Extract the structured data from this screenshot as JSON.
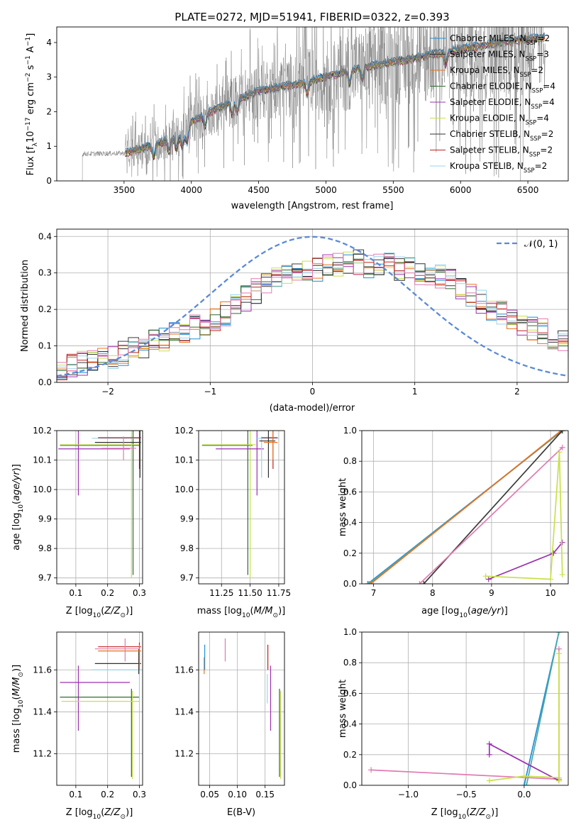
{
  "title": "PLATE=0272, MJD=51941, FIBERID=0322, z=0.393",
  "colors": {
    "Chabrier MILES": "#1f8fd6",
    "Salpeter MILES": "#3a3a3a",
    "Kroupa MILES": "#e8731e",
    "Chabrier ELODIE": "#2d6b2d",
    "Salpeter ELODIE": "#9b30b0",
    "Kroupa ELODIE": "#c8e04a",
    "Chabrier STELIB": "#303030",
    "Salpeter STELIB": "#c0201e",
    "Kroupa STELIB": "#9ad4ea",
    "data": "#808080",
    "normal": "#5b8ad6",
    "pink": "#e07ab0",
    "teal": "#4aa8a8"
  },
  "chart_data": [
    {
      "type": "line",
      "panel": "spectrum",
      "xlabel": "wavelength [Angstrom, rest frame]",
      "ylabel_main": "Flux [f",
      "ylabel_sub": "λ",
      "ylabel_rest": "10",
      "ylabel_exp": "−17",
      "ylabel_tail": " erg cm",
      "ylabel_exp2": "−2",
      "ylabel_tail2": " s",
      "ylabel_exp3": "−1",
      "ylabel_tail3": " A",
      "ylabel_exp4": "−1",
      "ylabel_end": "]",
      "xlim": [
        3000,
        6800
      ],
      "ylim": [
        0,
        4.45
      ],
      "xticks": [
        3500,
        4000,
        4500,
        5000,
        5500,
        6000,
        6500
      ],
      "yticks": [
        0,
        1,
        2,
        3,
        4
      ],
      "data_start": 3190,
      "data_end": 6630,
      "model_start": 3510,
      "continuum": [
        [
          3190,
          0.78
        ],
        [
          3500,
          0.8
        ],
        [
          3700,
          1.0
        ],
        [
          3950,
          1.35
        ],
        [
          4000,
          1.7
        ],
        [
          4200,
          2.1
        ],
        [
          4500,
          2.6
        ],
        [
          4800,
          2.8
        ],
        [
          5000,
          3.0
        ],
        [
          5300,
          3.3
        ],
        [
          5600,
          3.5
        ],
        [
          6000,
          3.8
        ],
        [
          6300,
          4.0
        ],
        [
          6630,
          4.15
        ]
      ],
      "legend": [
        {
          "name": "Chabrier MILES",
          "n": "2"
        },
        {
          "name": "Salpeter MILES",
          "n": "3"
        },
        {
          "name": "Kroupa MILES",
          "n": "2"
        },
        {
          "name": "Chabrier ELODIE",
          "n": "4"
        },
        {
          "name": "Salpeter ELODIE",
          "n": "4"
        },
        {
          "name": "Kroupa ELODIE",
          "n": "4"
        },
        {
          "name": "Chabrier STELIB",
          "n": "2"
        },
        {
          "name": "Salpeter STELIB",
          "n": "2"
        },
        {
          "name": "Kroupa STELIB",
          "n": "2"
        }
      ],
      "legend_prefix": ", N",
      "legend_sub": "SSP",
      "legend_eq": "=",
      "legend_placement": "upper-right"
    },
    {
      "type": "histogram",
      "panel": "residuals",
      "xlabel": "(data-model)/error",
      "ylabel": "Normed distribution",
      "xlim": [
        -2.5,
        2.5
      ],
      "ylim": [
        0,
        0.42
      ],
      "xticks": [
        -2,
        -1,
        0,
        1,
        2
      ],
      "yticks": [
        0.0,
        0.1,
        0.2,
        0.3,
        0.4
      ],
      "bin_edges_start": -2.5,
      "bin_width": 0.1,
      "gaussian_label": "𝒩(0, 1)",
      "legend_placement": "upper-right",
      "grid": true,
      "base_values": [
        0.04,
        0.045,
        0.05,
        0.055,
        0.06,
        0.07,
        0.08,
        0.09,
        0.1,
        0.11,
        0.12,
        0.13,
        0.14,
        0.15,
        0.16,
        0.17,
        0.19,
        0.21,
        0.23,
        0.25,
        0.27,
        0.28,
        0.29,
        0.3,
        0.31,
        0.31,
        0.32,
        0.32,
        0.33,
        0.33,
        0.32,
        0.32,
        0.32,
        0.31,
        0.31,
        0.3,
        0.3,
        0.29,
        0.28,
        0.26,
        0.24,
        0.22,
        0.2,
        0.19,
        0.18,
        0.16,
        0.15,
        0.14,
        0.12,
        0.11,
        0.1
      ]
    },
    {
      "type": "errorbar",
      "panel": "age-vs-Z",
      "xlabel_main": "Z [log",
      "xlabel_sub": "10",
      "xlabel_rest": "(Z/Z",
      "xlabel_sub2": "⊙",
      "xlabel_end": ")]",
      "ylabel_main": "age  [log",
      "ylabel_sub": "10",
      "ylabel_end": "(age/yr)]",
      "xlim": [
        0.04,
        0.31
      ],
      "ylim": [
        9.68,
        10.2
      ],
      "xticks": [
        0.1,
        0.2,
        0.3
      ],
      "yticks": [
        9.7,
        9.8,
        9.9,
        10.0,
        10.1,
        10.2
      ],
      "points": [
        {
          "model": "Salpeter ELODIE",
          "x": 0.108,
          "y": 10.138,
          "xlo": 0.045,
          "xhi": 0.27,
          "ylo": 9.98,
          "yhi": 10.2
        },
        {
          "model": "Chabrier ELODIE",
          "x": 0.28,
          "y": 10.15,
          "xlo": 0.05,
          "xhi": 0.3,
          "ylo": 9.71,
          "yhi": 10.2
        },
        {
          "model": "Kroupa ELODIE",
          "x": 0.275,
          "y": 10.152,
          "xlo": 0.05,
          "xhi": 0.3,
          "ylo": 9.7,
          "yhi": 10.2
        },
        {
          "model": "Kroupa STELIB",
          "x": 0.2,
          "y": 10.174,
          "xlo": 0.15,
          "xhi": 0.3,
          "ylo": 10.17,
          "yhi": 10.18
        },
        {
          "model": "Salpeter STELIB",
          "x": 0.3,
          "y": 10.176,
          "xlo": 0.17,
          "xhi": 0.305,
          "ylo": 10.07,
          "yhi": 10.2
        },
        {
          "model": "Chabrier STELIB",
          "x": 0.302,
          "y": 10.16,
          "xlo": 0.16,
          "xhi": 0.305,
          "ylo": 10.04,
          "yhi": 10.2
        },
        {
          "model": "pink",
          "x": 0.25,
          "y": 10.14,
          "xlo": 0.18,
          "xhi": 0.29,
          "ylo": 10.1,
          "yhi": 10.18
        }
      ]
    },
    {
      "type": "errorbar",
      "panel": "age-vs-mass",
      "xlabel_main": "mass [log",
      "xlabel_sub": "10",
      "xlabel_rest": "(M/M",
      "xlabel_sub2": "⊙",
      "xlabel_end": ")]",
      "xlim": [
        11.05,
        11.8
      ],
      "ylim": [
        9.68,
        10.2
      ],
      "xticks": [
        11.25,
        11.5,
        11.75
      ],
      "xtick_labels": [
        "11.25",
        "11.50",
        "11.75"
      ],
      "yticks": [
        9.7,
        9.8,
        9.9,
        10.0,
        10.1,
        10.2
      ],
      "points": [
        {
          "model": "Chabrier ELODIE",
          "x": 11.48,
          "y": 10.15,
          "xlo": 11.08,
          "xhi": 11.52,
          "ylo": 9.71,
          "yhi": 10.2
        },
        {
          "model": "Kroupa ELODIE",
          "x": 11.5,
          "y": 10.152,
          "xlo": 11.08,
          "xhi": 11.55,
          "ylo": 9.7,
          "yhi": 10.2
        },
        {
          "model": "Salpeter ELODIE",
          "x": 11.56,
          "y": 10.138,
          "xlo": 11.2,
          "xhi": 11.62,
          "ylo": 9.98,
          "yhi": 10.2
        },
        {
          "model": "Kroupa STELIB",
          "x": 11.6,
          "y": 10.174,
          "xlo": 11.55,
          "xhi": 11.75,
          "ylo": 10.04,
          "yhi": 10.18
        },
        {
          "model": "Salpeter STELIB",
          "x": 11.7,
          "y": 10.176,
          "xlo": 11.6,
          "xhi": 11.74,
          "ylo": 10.07,
          "yhi": 10.2
        },
        {
          "model": "Chabrier STELIB",
          "x": 11.66,
          "y": 10.165,
          "xlo": 11.58,
          "xhi": 11.72,
          "ylo": 10.04,
          "yhi": 10.2
        },
        {
          "model": "Kroupa MILES",
          "x": 11.7,
          "y": 10.16,
          "xlo": 11.62,
          "xhi": 11.74,
          "ylo": 10.1,
          "yhi": 10.2
        }
      ]
    },
    {
      "type": "line",
      "panel": "weight-vs-age",
      "xlabel_main": "age  [log",
      "xlabel_sub": "10",
      "xlabel_end": "(age/yr)]",
      "ylabel": "mass weight",
      "xlim": [
        6.8,
        10.3
      ],
      "ylim": [
        0,
        1
      ],
      "xticks": [
        7,
        8,
        9,
        10
      ],
      "yticks": [
        0.0,
        0.2,
        0.4,
        0.6,
        0.8,
        1.0
      ],
      "grid": true,
      "series": [
        {
          "model": "Chabrier MILES",
          "x": [
            6.9,
            10.2
          ],
          "y": [
            0.0,
            1.0
          ]
        },
        {
          "model": "teal",
          "x": [
            6.92,
            10.2
          ],
          "y": [
            0.0,
            1.0
          ]
        },
        {
          "model": "Kroupa MILES",
          "x": [
            6.95,
            10.18
          ],
          "y": [
            0.0,
            1.0
          ]
        },
        {
          "model": "Salpeter MILES",
          "x": [
            7.85,
            10.2
          ],
          "y": [
            0.0,
            1.0
          ]
        },
        {
          "model": "pink",
          "x": [
            7.78,
            10.2
          ],
          "y": [
            0.0,
            0.89
          ]
        },
        {
          "model": "Salpeter ELODIE",
          "x": [
            8.95,
            10.05,
            10.2
          ],
          "y": [
            0.03,
            0.2,
            0.27
          ]
        },
        {
          "model": "Kroupa ELODIE",
          "x": [
            8.9,
            10.0,
            10.15,
            10.2
          ],
          "y": [
            0.05,
            0.03,
            0.86,
            0.06
          ]
        }
      ]
    },
    {
      "type": "errorbar",
      "panel": "mass-vs-Z",
      "xlabel_main": "Z [log",
      "xlabel_sub": "10",
      "xlabel_rest": "(Z/Z",
      "xlabel_sub2": "⊙",
      "xlabel_end": ")]",
      "ylabel_main": "mass [log",
      "ylabel_sub": "10",
      "ylabel_rest": "(M/M",
      "ylabel_sub2": "⊙",
      "ylabel_end": ")]",
      "xlim": [
        0.04,
        0.31
      ],
      "ylim": [
        11.05,
        11.78
      ],
      "xticks": [
        0.1,
        0.2,
        0.3
      ],
      "yticks": [
        11.2,
        11.4,
        11.6
      ],
      "points": [
        {
          "model": "Salpeter ELODIE",
          "x": 0.108,
          "y": 11.54,
          "xlo": 0.05,
          "xhi": 0.27,
          "ylo": 11.31,
          "yhi": 11.62
        },
        {
          "model": "Chabrier ELODIE",
          "x": 0.275,
          "y": 11.47,
          "xlo": 0.05,
          "xhi": 0.3,
          "ylo": 11.09,
          "yhi": 11.51
        },
        {
          "model": "Kroupa ELODIE",
          "x": 0.278,
          "y": 11.45,
          "xlo": 0.055,
          "xhi": 0.3,
          "ylo": 11.08,
          "yhi": 11.5
        },
        {
          "model": "Kroupa STELIB",
          "x": 0.3,
          "y": 11.6,
          "xlo": 0.15,
          "xhi": 0.305,
          "ylo": 11.45,
          "yhi": 11.72
        },
        {
          "model": "Salpeter STELIB",
          "x": 0.3,
          "y": 11.71,
          "xlo": 0.17,
          "xhi": 0.305,
          "ylo": 11.62,
          "yhi": 11.73
        },
        {
          "model": "Chabrier STELIB",
          "x": 0.298,
          "y": 11.63,
          "xlo": 0.16,
          "xhi": 0.305,
          "ylo": 11.58,
          "yhi": 11.7
        },
        {
          "model": "Kroupa MILES",
          "x": 0.3,
          "y": 11.69,
          "xlo": 0.17,
          "xhi": 0.305,
          "ylo": 11.6,
          "yhi": 11.72
        },
        {
          "model": "pink",
          "x": 0.255,
          "y": 11.7,
          "xlo": 0.16,
          "xhi": 0.3,
          "ylo": 11.64,
          "yhi": 11.75
        }
      ]
    },
    {
      "type": "errorbar",
      "panel": "mass-vs-EBV",
      "xlabel": "E(B-V)",
      "xlim": [
        0.03,
        0.185
      ],
      "ylim": [
        11.05,
        11.78
      ],
      "xticks": [
        0.05,
        0.1,
        0.15
      ],
      "xtick_labels": [
        "0.05",
        "0.10",
        "0.15"
      ],
      "yticks": [
        11.2,
        11.4,
        11.6
      ],
      "points": [
        {
          "model": "Kroupa MILES",
          "x": 0.04,
          "y": 11.6,
          "ylo": 11.58,
          "yhi": 11.66
        },
        {
          "model": "Chabrier MILES",
          "x": 0.041,
          "y": 11.66,
          "ylo": 11.6,
          "yhi": 11.72
        },
        {
          "model": "pink",
          "x": 0.078,
          "y": 11.7,
          "ylo": 11.64,
          "yhi": 11.75
        },
        {
          "model": "Kroupa STELIB",
          "x": 0.154,
          "y": 11.5,
          "ylo": 11.44,
          "yhi": 11.58
        },
        {
          "model": "Salpeter STELIB",
          "x": 0.155,
          "y": 11.66,
          "ylo": 11.6,
          "yhi": 11.72
        },
        {
          "model": "Salpeter ELODIE",
          "x": 0.16,
          "y": 11.45,
          "ylo": 11.31,
          "yhi": 11.62
        },
        {
          "model": "Chabrier ELODIE",
          "x": 0.176,
          "y": 11.47,
          "ylo": 11.09,
          "yhi": 11.51
        },
        {
          "model": "Kroupa ELODIE",
          "x": 0.178,
          "y": 11.45,
          "ylo": 11.08,
          "yhi": 11.5
        }
      ]
    },
    {
      "type": "line",
      "panel": "weight-vs-Z",
      "xlabel_main": "Z [log",
      "xlabel_sub": "10",
      "xlabel_rest": "(Z/Z",
      "xlabel_sub2": "⊙",
      "xlabel_end": ")]",
      "ylabel": "mass weight",
      "xlim": [
        -1.4,
        0.38
      ],
      "ylim": [
        0,
        1
      ],
      "xticks": [
        -1.0,
        -0.5,
        0.0
      ],
      "xtick_labels": [
        "−1.0",
        "−0.5",
        "0.0"
      ],
      "yticks": [
        0.0,
        0.2,
        0.4,
        0.6,
        0.8,
        1.0
      ],
      "grid": true,
      "series": [
        {
          "model": "Chabrier MILES",
          "x": [
            0.0,
            0.3
          ],
          "y": [
            0.0,
            1.0
          ]
        },
        {
          "model": "teal",
          "x": [
            0.02,
            0.3
          ],
          "y": [
            0.0,
            1.0
          ]
        },
        {
          "model": "pink",
          "x": [
            -1.32,
            0.3,
            0.3
          ],
          "y": [
            0.1,
            0.04,
            0.89
          ]
        },
        {
          "model": "Salpeter ELODIE",
          "x": [
            -0.3,
            -0.3,
            0.3
          ],
          "y": [
            0.2,
            0.27,
            0.03
          ]
        },
        {
          "model": "Kroupa ELODIE",
          "x": [
            -0.3,
            0.0,
            0.3,
            0.3,
            0.3
          ],
          "y": [
            0.03,
            0.06,
            0.05,
            0.86,
            0.03
          ]
        }
      ]
    }
  ]
}
